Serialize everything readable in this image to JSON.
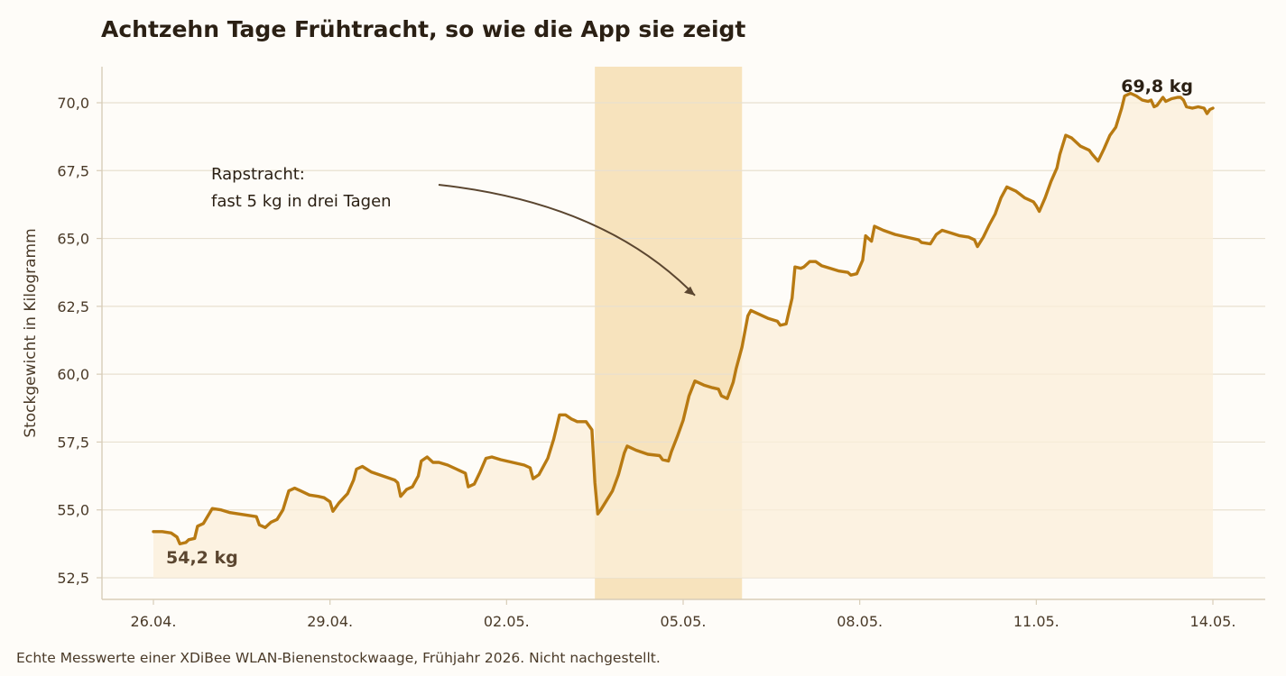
{
  "title": "Achtzehn Tage Frühtracht, so wie die App sie zeigt",
  "footnote": "Echte Messwerte einer XDiBee WLAN-Bienenstockwaage, Frühjahr 2026. Nicht nachgestellt.",
  "colors": {
    "line": "#b87a12",
    "area": "#fbefd9",
    "highlight": "#f7e3bd",
    "grid": "#e8e0d0",
    "axis": "#d8cdb8",
    "annotation_arrow": "#5b4630",
    "start_label": "#5b4630",
    "end_label": "#2b2014"
  },
  "chart_data": {
    "type": "line",
    "title": "Achtzehn Tage Frühtracht, so wie die App sie zeigt",
    "xlabel": "",
    "ylabel": "Stockgewicht in Kilogramm",
    "x_ticks": [
      "26.04.",
      "29.04.",
      "02.05.",
      "05.05.",
      "08.05.",
      "11.05.",
      "14.05."
    ],
    "y_ticks": [
      "52,5",
      "55,0",
      "57,5",
      "60,0",
      "62,5",
      "65,0",
      "67,5",
      "70,0"
    ],
    "x_range_days": [
      0,
      18
    ],
    "ylim": [
      52.5,
      70.0
    ],
    "grid": "horizontal",
    "highlight_range_days": [
      7.5,
      10.0
    ],
    "annotation": {
      "lines": [
        "Rapstracht:",
        "fast 5 kg in drei Tagen"
      ],
      "arrow_to": {
        "day": 9.2,
        "value": 62.9
      }
    },
    "start_label": "54,2 kg",
    "end_label": "69,8 kg",
    "series": [
      {
        "points": [
          [
            0.0,
            54.2
          ],
          [
            0.15,
            54.2
          ],
          [
            0.3,
            54.15
          ],
          [
            0.4,
            54.0
          ],
          [
            0.45,
            53.75
          ],
          [
            0.55,
            53.8
          ],
          [
            0.6,
            53.9
          ],
          [
            0.7,
            53.95
          ],
          [
            0.75,
            54.4
          ],
          [
            0.85,
            54.5
          ],
          [
            1.0,
            55.05
          ],
          [
            1.15,
            55.0
          ],
          [
            1.3,
            54.9
          ],
          [
            1.45,
            54.85
          ],
          [
            1.6,
            54.8
          ],
          [
            1.75,
            54.75
          ],
          [
            1.8,
            54.45
          ],
          [
            1.9,
            54.35
          ],
          [
            2.0,
            54.55
          ],
          [
            2.1,
            54.65
          ],
          [
            2.2,
            55.0
          ],
          [
            2.3,
            55.7
          ],
          [
            2.4,
            55.8
          ],
          [
            2.5,
            55.7
          ],
          [
            2.65,
            55.55
          ],
          [
            2.8,
            55.5
          ],
          [
            2.9,
            55.45
          ],
          [
            3.0,
            55.3
          ],
          [
            3.05,
            54.95
          ],
          [
            3.15,
            55.25
          ],
          [
            3.3,
            55.6
          ],
          [
            3.4,
            56.1
          ],
          [
            3.45,
            56.5
          ],
          [
            3.55,
            56.6
          ],
          [
            3.7,
            56.4
          ],
          [
            3.9,
            56.25
          ],
          [
            4.1,
            56.1
          ],
          [
            4.15,
            56.0
          ],
          [
            4.2,
            55.5
          ],
          [
            4.3,
            55.75
          ],
          [
            4.4,
            55.85
          ],
          [
            4.5,
            56.25
          ],
          [
            4.55,
            56.8
          ],
          [
            4.65,
            56.95
          ],
          [
            4.75,
            56.75
          ],
          [
            4.85,
            56.75
          ],
          [
            5.0,
            56.65
          ],
          [
            5.15,
            56.5
          ],
          [
            5.3,
            56.35
          ],
          [
            5.35,
            55.85
          ],
          [
            5.45,
            55.95
          ],
          [
            5.55,
            56.4
          ],
          [
            5.65,
            56.9
          ],
          [
            5.75,
            56.95
          ],
          [
            5.9,
            56.85
          ],
          [
            6.1,
            56.75
          ],
          [
            6.3,
            56.65
          ],
          [
            6.4,
            56.55
          ],
          [
            6.45,
            56.15
          ],
          [
            6.55,
            56.3
          ],
          [
            6.7,
            56.9
          ],
          [
            6.8,
            57.6
          ],
          [
            6.85,
            58.05
          ],
          [
            6.9,
            58.5
          ],
          [
            7.0,
            58.5
          ],
          [
            7.1,
            58.35
          ],
          [
            7.2,
            58.25
          ],
          [
            7.35,
            58.25
          ],
          [
            7.45,
            57.95
          ],
          [
            7.5,
            56.0
          ],
          [
            7.55,
            54.85
          ],
          [
            7.6,
            55.0
          ],
          [
            7.7,
            55.35
          ],
          [
            7.8,
            55.7
          ],
          [
            7.9,
            56.3
          ],
          [
            8.0,
            57.1
          ],
          [
            8.05,
            57.35
          ],
          [
            8.2,
            57.2
          ],
          [
            8.4,
            57.05
          ],
          [
            8.6,
            57.0
          ],
          [
            8.65,
            56.85
          ],
          [
            8.75,
            56.8
          ],
          [
            8.8,
            57.15
          ],
          [
            8.9,
            57.7
          ],
          [
            9.0,
            58.3
          ],
          [
            9.1,
            59.2
          ],
          [
            9.2,
            59.75
          ],
          [
            9.35,
            59.6
          ],
          [
            9.5,
            59.5
          ],
          [
            9.6,
            59.45
          ],
          [
            9.65,
            59.2
          ],
          [
            9.75,
            59.1
          ],
          [
            9.85,
            59.7
          ],
          [
            9.9,
            60.2
          ],
          [
            10.0,
            61.0
          ],
          [
            10.1,
            62.15
          ],
          [
            10.15,
            62.35
          ],
          [
            10.3,
            62.2
          ],
          [
            10.45,
            62.05
          ],
          [
            10.6,
            61.95
          ],
          [
            10.65,
            61.8
          ],
          [
            10.75,
            61.85
          ],
          [
            10.85,
            62.8
          ],
          [
            10.9,
            63.95
          ],
          [
            11.0,
            63.9
          ],
          [
            11.05,
            63.95
          ],
          [
            11.15,
            64.15
          ],
          [
            11.25,
            64.15
          ],
          [
            11.35,
            64.0
          ],
          [
            11.5,
            63.9
          ],
          [
            11.65,
            63.8
          ],
          [
            11.8,
            63.75
          ],
          [
            11.85,
            63.65
          ],
          [
            11.95,
            63.7
          ],
          [
            12.05,
            64.2
          ],
          [
            12.1,
            65.1
          ],
          [
            12.2,
            64.9
          ],
          [
            12.25,
            65.45
          ],
          [
            12.4,
            65.3
          ],
          [
            12.6,
            65.15
          ],
          [
            12.8,
            65.05
          ],
          [
            13.0,
            64.95
          ],
          [
            13.05,
            64.85
          ],
          [
            13.2,
            64.8
          ],
          [
            13.3,
            65.15
          ],
          [
            13.4,
            65.3
          ],
          [
            13.55,
            65.2
          ],
          [
            13.7,
            65.1
          ],
          [
            13.85,
            65.05
          ],
          [
            13.95,
            64.95
          ],
          [
            14.0,
            64.7
          ],
          [
            14.1,
            65.05
          ],
          [
            14.2,
            65.5
          ],
          [
            14.3,
            65.9
          ],
          [
            14.4,
            66.5
          ],
          [
            14.5,
            66.9
          ],
          [
            14.65,
            66.75
          ],
          [
            14.8,
            66.5
          ],
          [
            14.95,
            66.35
          ],
          [
            15.0,
            66.2
          ],
          [
            15.05,
            66.0
          ],
          [
            15.15,
            66.5
          ],
          [
            15.25,
            67.1
          ],
          [
            15.35,
            67.6
          ],
          [
            15.4,
            68.1
          ],
          [
            15.5,
            68.8
          ],
          [
            15.6,
            68.7
          ],
          [
            15.75,
            68.4
          ],
          [
            15.9,
            68.25
          ],
          [
            15.95,
            68.1
          ],
          [
            16.05,
            67.85
          ],
          [
            16.15,
            68.3
          ],
          [
            16.25,
            68.8
          ],
          [
            16.35,
            69.1
          ],
          [
            16.45,
            69.8
          ],
          [
            16.5,
            70.25
          ],
          [
            16.6,
            70.35
          ],
          [
            16.7,
            70.25
          ],
          [
            16.8,
            70.1
          ],
          [
            16.9,
            70.05
          ],
          [
            16.95,
            70.1
          ],
          [
            17.0,
            69.85
          ],
          [
            17.05,
            69.9
          ],
          [
            17.15,
            70.2
          ],
          [
            17.2,
            70.05
          ],
          [
            17.3,
            70.15
          ],
          [
            17.4,
            70.2
          ],
          [
            17.45,
            70.2
          ],
          [
            17.5,
            70.1
          ],
          [
            17.55,
            69.85
          ],
          [
            17.65,
            69.8
          ],
          [
            17.75,
            69.85
          ],
          [
            17.85,
            69.8
          ],
          [
            17.9,
            69.6
          ],
          [
            17.95,
            69.75
          ],
          [
            18.0,
            69.8
          ]
        ]
      }
    ]
  }
}
